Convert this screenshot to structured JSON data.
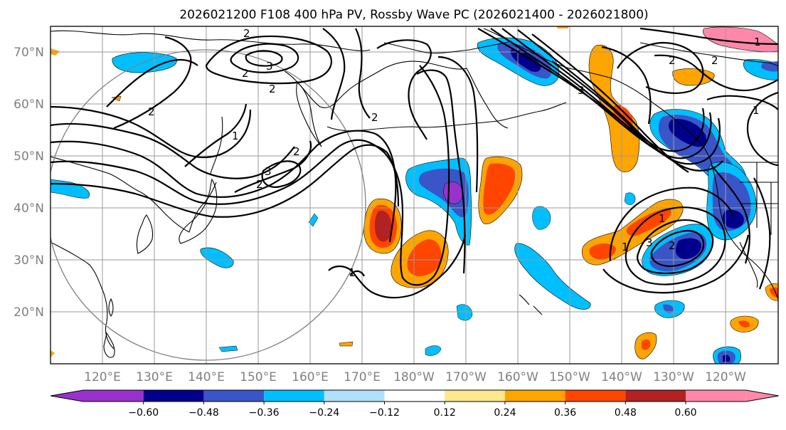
{
  "title": "2026021200 F108 400 hPa PV, Rossby Wave PC (2026021400 - 2026021800)",
  "lat_labels": [
    "70°N",
    "60°N",
    "50°N",
    "40°N",
    "30°N",
    "20°N"
  ],
  "lon_labels": [
    "120°E",
    "130°E",
    "140°E",
    "150°E",
    "160°E",
    "170°E",
    "180°W",
    "170°W",
    "160°W",
    "150°W",
    "140°W",
    "130°W",
    "120°W"
  ],
  "colorbar": {
    "ticks": [
      "−0.60",
      "−0.48",
      "−0.36",
      "−0.24",
      "−0.12",
      "0.12",
      "0.24",
      "0.36",
      "0.48",
      "0.60"
    ],
    "colors": [
      "#9932cc",
      "#00008b",
      "#3a55c8",
      "#00bfff",
      "#b0e0fa",
      "#ffffff",
      "#ffe88c",
      "#ffa500",
      "#ff4500",
      "#b22222",
      "#ff88aa"
    ]
  },
  "contour_labels": [
    "2",
    "3",
    "2",
    "2",
    "2",
    "1",
    "2",
    "2",
    "3",
    "1",
    "3",
    "2",
    "2",
    "1",
    "1",
    "2",
    "3",
    "1",
    "2",
    "1"
  ],
  "colors": {
    "grid": "#9a9a9a",
    "frame": "#000000",
    "circle": "#808080"
  }
}
